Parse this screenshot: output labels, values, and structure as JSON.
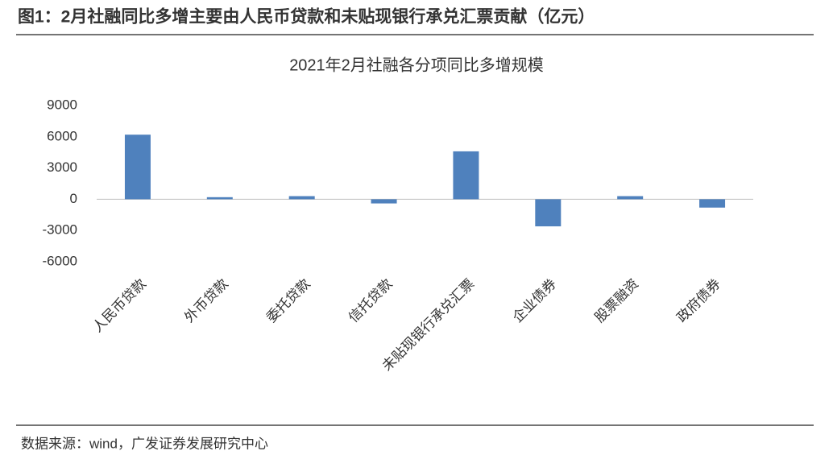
{
  "header": {
    "title": "图1：2月社融同比多增主要由人民币贷款和未贴现银行承兑汇票贡献（亿元）"
  },
  "chart_data": {
    "type": "bar",
    "title": "2021年2月社融各分项同比多增规模",
    "categories": [
      "人民币贷款",
      "外币贷款",
      "委托贷款",
      "信托贷款",
      "未贴现银行承兑汇票",
      "企业债券",
      "股票融资",
      "政府债券"
    ],
    "values": [
      6200,
      200,
      300,
      -400,
      4600,
      -2600,
      300,
      -800
    ],
    "color": "#4f81bd",
    "ylim": [
      -6000,
      9000
    ],
    "yticks": [
      9000,
      6000,
      3000,
      0,
      -3000,
      -6000
    ],
    "grid": false
  },
  "source": {
    "text": "数据来源：wind，广发证券发展研究中心"
  }
}
